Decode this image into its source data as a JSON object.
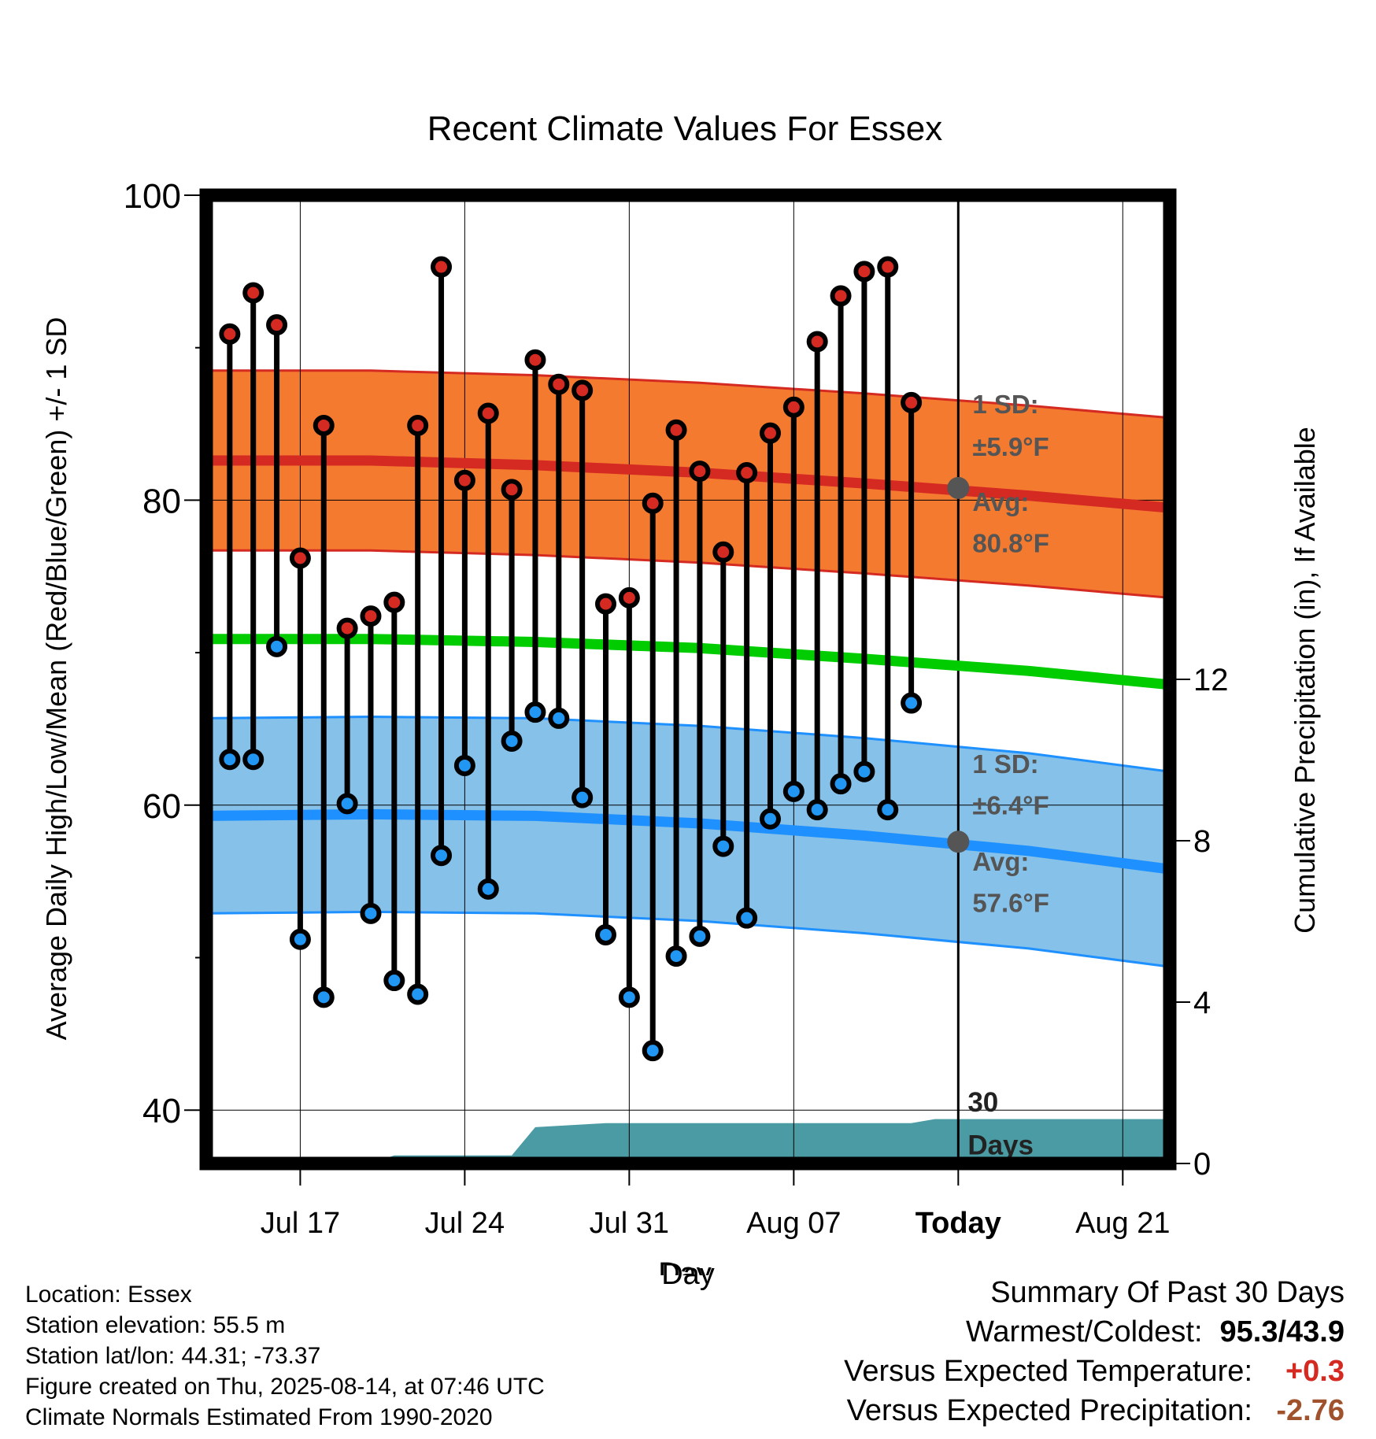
{
  "chart_data": {
    "type": "line",
    "title": "Recent Climate Values For Essex",
    "xlabel": "Day",
    "ylabel": "Average Daily High/Low/Mean (Red/Blue/Green) +/- 1 SD",
    "y2label": "Cumulative Precipitation (in), If Available",
    "ylim": [
      36.5,
      100
    ],
    "y2lim": [
      0,
      24
    ],
    "x_tick_labels": [
      "Jul 17",
      "Jul 24",
      "Jul 31",
      "Aug 07",
      "Today",
      "Aug 21"
    ],
    "x_tick_days": [
      "2025-07-17",
      "2025-07-24",
      "2025-07-31",
      "2025-08-07",
      "2025-08-14",
      "2025-08-21"
    ],
    "xlim": [
      "2025-07-13",
      "2025-08-23"
    ],
    "y_ticks": [
      40,
      60,
      80,
      100
    ],
    "y2_ticks": [
      0,
      4,
      8,
      12
    ],
    "days": [
      "2025-07-14",
      "2025-07-15",
      "2025-07-16",
      "2025-07-17",
      "2025-07-18",
      "2025-07-19",
      "2025-07-20",
      "2025-07-21",
      "2025-07-22",
      "2025-07-23",
      "2025-07-24",
      "2025-07-25",
      "2025-07-26",
      "2025-07-27",
      "2025-07-28",
      "2025-07-29",
      "2025-07-30",
      "2025-07-31",
      "2025-08-01",
      "2025-08-02",
      "2025-08-03",
      "2025-08-04",
      "2025-08-05",
      "2025-08-06",
      "2025-08-07",
      "2025-08-08",
      "2025-08-09",
      "2025-08-10",
      "2025-08-11",
      "2025-08-12",
      "2025-08-13"
    ],
    "daily_high": [
      90.9,
      93.6,
      91.5,
      76.2,
      84.9,
      71.6,
      72.4,
      73.3,
      84.9,
      95.3,
      81.3,
      85.7,
      80.7,
      89.2,
      87.6,
      87.2,
      73.2,
      73.6,
      79.8,
      84.6,
      81.9,
      76.6,
      81.8,
      84.4,
      86.1,
      90.4,
      93.4,
      95.0,
      95.3,
      86.4,
      null
    ],
    "daily_low": [
      63.0,
      63.0,
      70.4,
      51.2,
      47.4,
      60.1,
      52.9,
      48.5,
      47.6,
      56.7,
      62.6,
      54.5,
      64.2,
      66.1,
      65.7,
      60.5,
      51.5,
      47.4,
      43.9,
      50.1,
      51.4,
      57.3,
      52.6,
      59.1,
      60.9,
      59.7,
      61.4,
      62.2,
      59.7,
      66.7,
      null
    ],
    "normals_days": [
      "2025-07-13",
      "2025-07-20",
      "2025-07-27",
      "2025-08-03",
      "2025-08-10",
      "2025-08-17",
      "2025-08-23"
    ],
    "normal_high": [
      82.6,
      82.6,
      82.3,
      81.8,
      81.1,
      80.3,
      79.5
    ],
    "normal_high_upper": [
      88.5,
      88.5,
      88.2,
      87.7,
      87.0,
      86.2,
      85.4
    ],
    "normal_high_lower": [
      76.7,
      76.7,
      76.4,
      75.9,
      75.2,
      74.4,
      73.6
    ],
    "normal_mean": [
      70.9,
      70.9,
      70.7,
      70.3,
      69.6,
      68.8,
      67.9
    ],
    "normal_low": [
      59.3,
      59.4,
      59.3,
      58.8,
      58.0,
      57.0,
      55.8
    ],
    "normal_low_upper": [
      65.7,
      65.8,
      65.7,
      65.2,
      64.4,
      63.4,
      62.2
    ],
    "normal_low_lower": [
      52.9,
      53.0,
      52.9,
      52.4,
      51.6,
      50.6,
      49.4
    ],
    "precip_days": [
      "2025-07-13",
      "2025-07-20",
      "2025-07-21",
      "2025-07-26",
      "2025-07-27",
      "2025-07-30",
      "2025-08-12",
      "2025-08-13",
      "2025-08-23"
    ],
    "cum_precip": [
      0.0,
      0.0,
      0.2,
      0.2,
      0.9,
      1.0,
      1.0,
      1.1,
      1.1
    ],
    "today_label": "Today",
    "today_high_avg": 80.8,
    "today_low_avg": 57.6,
    "high_sd_label": "1 SD:",
    "high_sd_value": "±5.9°F",
    "low_sd_label": "1 SD:",
    "low_sd_value": "±6.4°F",
    "avg_label": "Avg:",
    "high_avg_text": "80.8°F",
    "low_avg_text": "57.6°F",
    "days_marker_top": "30",
    "days_marker_bottom": "Days",
    "colors": {
      "high_band": "#f47a30",
      "high_line": "#d42a22",
      "mean_line": "#00cc00",
      "low_band": "#85c1e8",
      "low_line": "#1e90ff",
      "precip": "#4a9ba3",
      "high_point": "#d42a22",
      "low_point": "#2196f3",
      "annotation": "#555555"
    },
    "grid": true
  },
  "info": {
    "location": "Location: Essex",
    "elevation": "Station elevation: 55.5 m",
    "latlon": "Station lat/lon: 44.31; -73.37",
    "created": "Figure created on Thu, 2025-08-14, at 07:46 UTC",
    "normals": "Climate Normals Estimated From 1990-2020"
  },
  "summary": {
    "title": "Summary Of Past 30 Days",
    "warm_cold_label": "Warmest/Coldest:",
    "warm_cold_value": "95.3/43.9",
    "temp_label": "Versus Expected Temperature:",
    "temp_value": "+0.3",
    "temp_color": "#d42a22",
    "precip_label": "Versus Expected Precipitation:",
    "precip_value": "-2.76",
    "precip_color": "#a0522d"
  }
}
